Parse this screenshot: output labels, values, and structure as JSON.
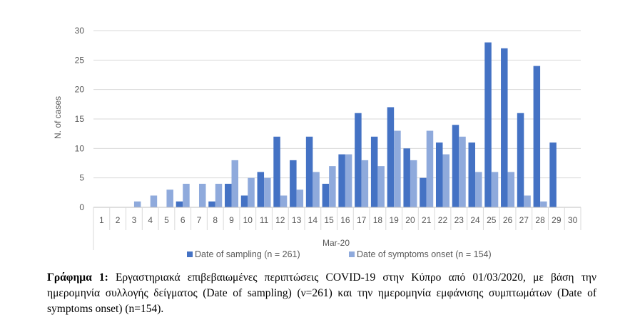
{
  "chart_data": {
    "type": "bar",
    "ylabel": "N. of cases",
    "xlabel": "Mar-20",
    "ylim": [
      0,
      30
    ],
    "yticks": [
      0,
      5,
      10,
      15,
      20,
      25,
      30
    ],
    "grid": true,
    "legend_position": "bottom",
    "categories": [
      "1",
      "2",
      "3",
      "4",
      "5",
      "6",
      "7",
      "8",
      "9",
      "10",
      "11",
      "12",
      "13",
      "14",
      "15",
      "16",
      "17",
      "18",
      "19",
      "20",
      "21",
      "22",
      "23",
      "24",
      "25",
      "26",
      "27",
      "28",
      "29",
      "30"
    ],
    "series": [
      {
        "name": "Date of sampling (n = 261)",
        "color": "#4472C4",
        "values": [
          0,
          0,
          0,
          0,
          0,
          1,
          0,
          1,
          4,
          2,
          6,
          12,
          8,
          12,
          4,
          9,
          16,
          12,
          17,
          10,
          5,
          11,
          14,
          11,
          28,
          27,
          16,
          24,
          11,
          0
        ]
      },
      {
        "name": "Date of symptoms onset (n = 154)",
        "color": "#8FAADC",
        "values": [
          0,
          0,
          1,
          2,
          3,
          4,
          4,
          4,
          8,
          5,
          5,
          2,
          3,
          6,
          7,
          9,
          8,
          7,
          13,
          8,
          13,
          9,
          12,
          6,
          6,
          6,
          2,
          1,
          0,
          0
        ]
      }
    ]
  },
  "caption": {
    "label": "Γράφημα 1:",
    "text": " Εργαστηριακά επιβεβαιωμένες περιπτώσεις COVID-19 στην Κύπρο από 01/03/2020, με βάση την ημερομηνία συλλογής δείγματος (Date of sampling) (ν=261) και την ημερομηνία εμφάνισης συμπτωμάτων (Date of symptoms onset) (n=154)."
  }
}
